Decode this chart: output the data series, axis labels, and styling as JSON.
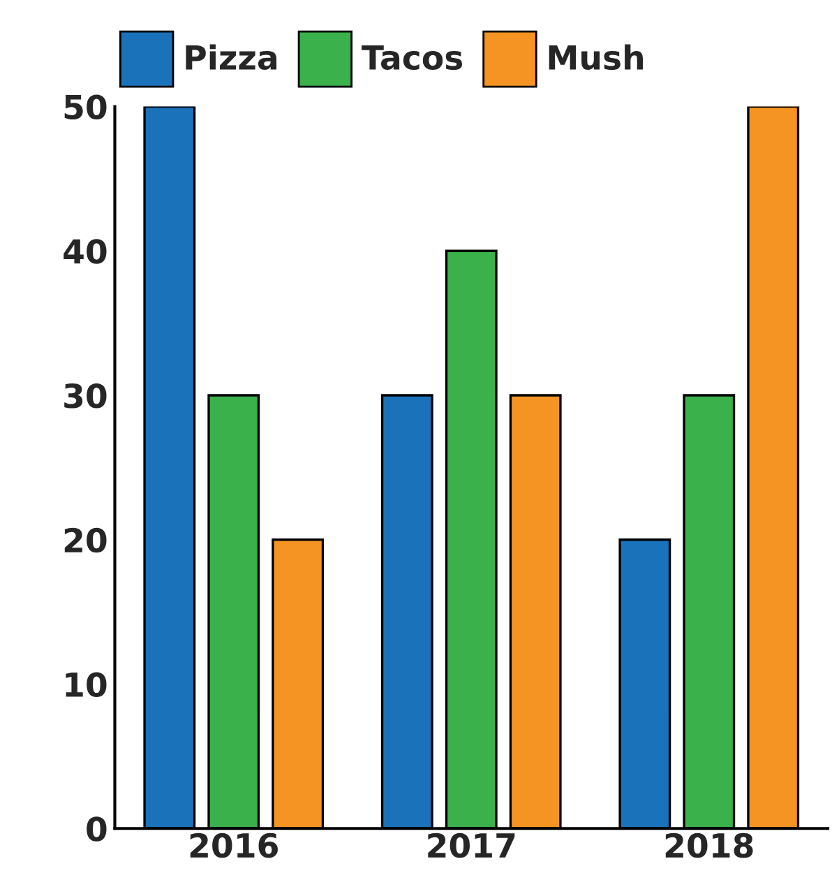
{
  "chart_data": {
    "type": "bar",
    "categories": [
      "2016",
      "2017",
      "2018"
    ],
    "series": [
      {
        "name": "Pizza",
        "color": "#1a72bb",
        "values": [
          50,
          30,
          20
        ]
      },
      {
        "name": "Tacos",
        "color": "#3ab14a",
        "values": [
          30,
          40,
          30
        ]
      },
      {
        "name": "Mush",
        "color": "#f59422",
        "values": [
          20,
          30,
          50
        ]
      }
    ],
    "ylim": [
      0,
      50
    ],
    "yticks": [
      0,
      10,
      20,
      30,
      40,
      50
    ],
    "grid": false,
    "legend": "top left"
  }
}
